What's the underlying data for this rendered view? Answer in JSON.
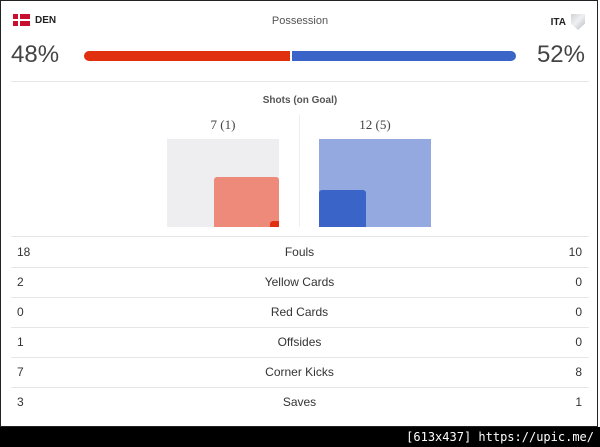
{
  "home": {
    "code": "DEN",
    "possession": "48%",
    "possession_value": 48,
    "shots_label": "7 (1)",
    "shots": 7,
    "on_goal": 1,
    "flag_icon": "denmark-flag-icon",
    "color": "#e0300f"
  },
  "away": {
    "code": "ITA",
    "possession": "52%",
    "possession_value": 52,
    "shots_label": "12 (5)",
    "shots": 12,
    "on_goal": 5,
    "crest_icon": "italy-crest-icon",
    "color": "#3a64c8"
  },
  "possession_title": "Possession",
  "shots_title": "Shots (on Goal)",
  "stats": [
    {
      "label": "Fouls",
      "home": "18",
      "away": "10"
    },
    {
      "label": "Yellow Cards",
      "home": "2",
      "away": "0"
    },
    {
      "label": "Red Cards",
      "home": "0",
      "away": "0"
    },
    {
      "label": "Offsides",
      "home": "1",
      "away": "0"
    },
    {
      "label": "Corner Kicks",
      "home": "7",
      "away": "8"
    },
    {
      "label": "Saves",
      "home": "3",
      "away": "1"
    }
  ],
  "footer_text": "[613x437] https://upic.me/"
}
